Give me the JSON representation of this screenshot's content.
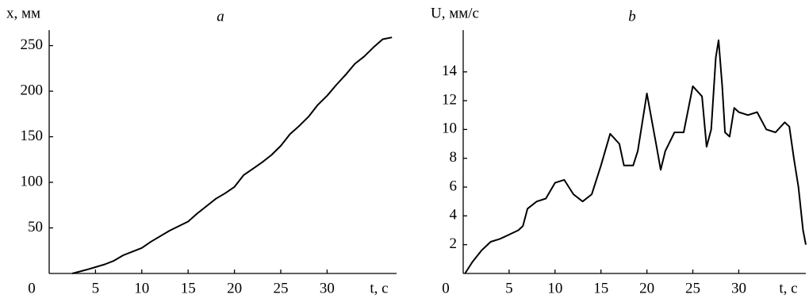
{
  "chart_data": [
    {
      "type": "line",
      "title": "a",
      "y_label": "x, мм",
      "x_label": "t, с",
      "x": [
        2.5,
        4,
        5,
        6,
        7,
        8,
        9,
        10,
        11,
        13,
        15,
        16,
        17,
        18,
        19,
        20,
        21,
        22,
        23,
        24,
        25,
        26,
        27,
        28,
        29,
        30,
        31,
        32,
        33,
        34,
        35,
        36,
        37
      ],
      "series": [
        {
          "color": "#000000",
          "values": [
            0,
            4,
            7,
            10,
            14,
            20,
            24,
            28,
            35,
            47,
            57,
            66,
            74,
            82,
            88,
            95,
            108,
            115,
            122,
            130,
            140,
            153,
            162,
            172,
            185,
            195,
            207,
            218,
            230,
            238,
            248,
            257,
            259
          ]
        }
      ],
      "xlim": [
        0,
        37.5
      ],
      "ylim": [
        0,
        267
      ],
      "xticks": [
        0,
        5,
        10,
        15,
        20,
        25,
        30
      ],
      "yticks": [
        50,
        100,
        150,
        200,
        250
      ]
    },
    {
      "type": "line",
      "title": "b",
      "y_label": "U, мм/с",
      "x_label": "t, с",
      "x": [
        0.2,
        1,
        2,
        3,
        4,
        5,
        6,
        6.5,
        7,
        8,
        9,
        10,
        11,
        12,
        13,
        14,
        15,
        16,
        17,
        17.5,
        18.5,
        19,
        20,
        21,
        21.5,
        22,
        23,
        24,
        25,
        26,
        26.5,
        27,
        27.5,
        27.8,
        28.2,
        28.5,
        29,
        29.5,
        30,
        31,
        32,
        33,
        34,
        35,
        35.5,
        36,
        36.5,
        37,
        37.3
      ],
      "series": [
        {
          "color": "#000000",
          "values": [
            0,
            0.8,
            1.6,
            2.2,
            2.4,
            2.7,
            3.0,
            3.3,
            4.5,
            5.0,
            5.2,
            6.3,
            6.5,
            5.5,
            5.0,
            5.5,
            7.5,
            9.7,
            9.0,
            7.5,
            7.5,
            8.5,
            12.5,
            9.0,
            7.2,
            8.5,
            9.8,
            9.8,
            13.0,
            12.3,
            8.8,
            10.0,
            15.0,
            16.2,
            13.0,
            9.8,
            9.5,
            11.5,
            11.2,
            11.0,
            11.2,
            10.0,
            9.8,
            10.5,
            10.2,
            8.0,
            6.0,
            3.0,
            2.0
          ]
        }
      ],
      "xlim": [
        0,
        37.3
      ],
      "ylim": [
        0,
        16.9
      ],
      "xticks": [
        0,
        5,
        10,
        15,
        20,
        25,
        30
      ],
      "yticks": [
        2,
        4,
        6,
        8,
        10,
        12,
        14
      ]
    }
  ]
}
